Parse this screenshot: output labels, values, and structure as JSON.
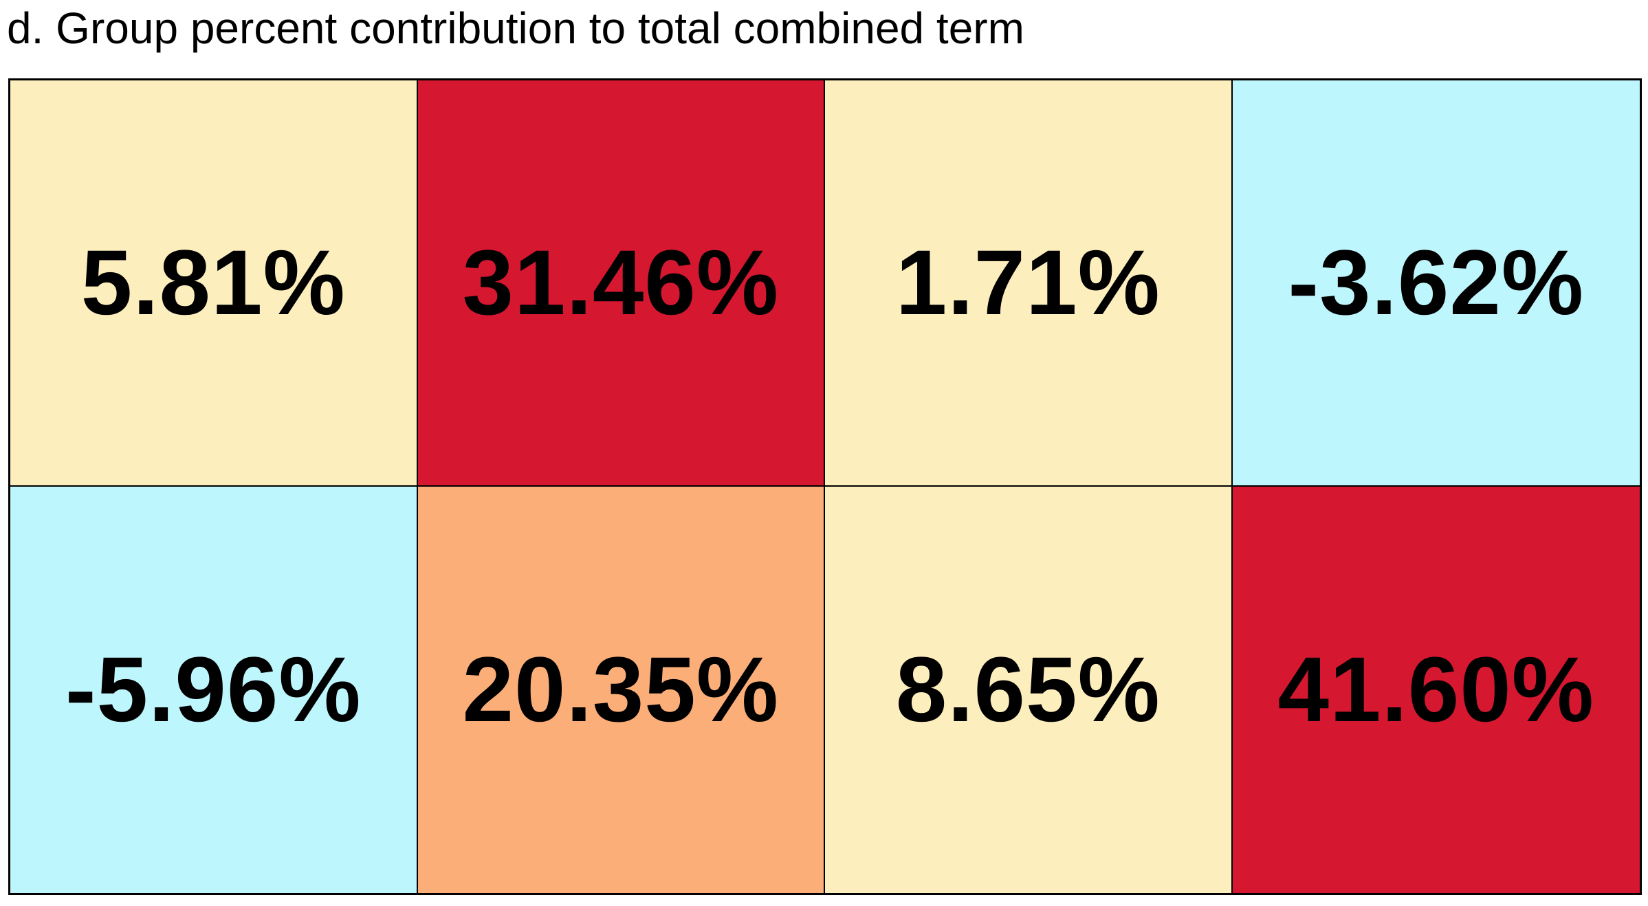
{
  "chart_data": {
    "type": "heatmap",
    "title": "d. Group percent contribution to total combined term",
    "rows": 2,
    "columns": 4,
    "values": [
      [
        5.81,
        31.46,
        1.71,
        -3.62
      ],
      [
        -5.96,
        20.35,
        8.65,
        41.6
      ]
    ],
    "labels": [
      [
        "5.81%",
        "31.46%",
        "1.71%",
        "-3.62%"
      ],
      [
        "-5.96%",
        "20.35%",
        "8.65%",
        "41.60%"
      ]
    ],
    "cell_colors": [
      [
        "#fdefbd",
        "#d51730",
        "#fdefbd",
        "#bdf6fc"
      ],
      [
        "#bdf6fc",
        "#fcae79",
        "#fdefbd",
        "#d51730"
      ]
    ],
    "text_color": "#000000",
    "grid": true
  }
}
